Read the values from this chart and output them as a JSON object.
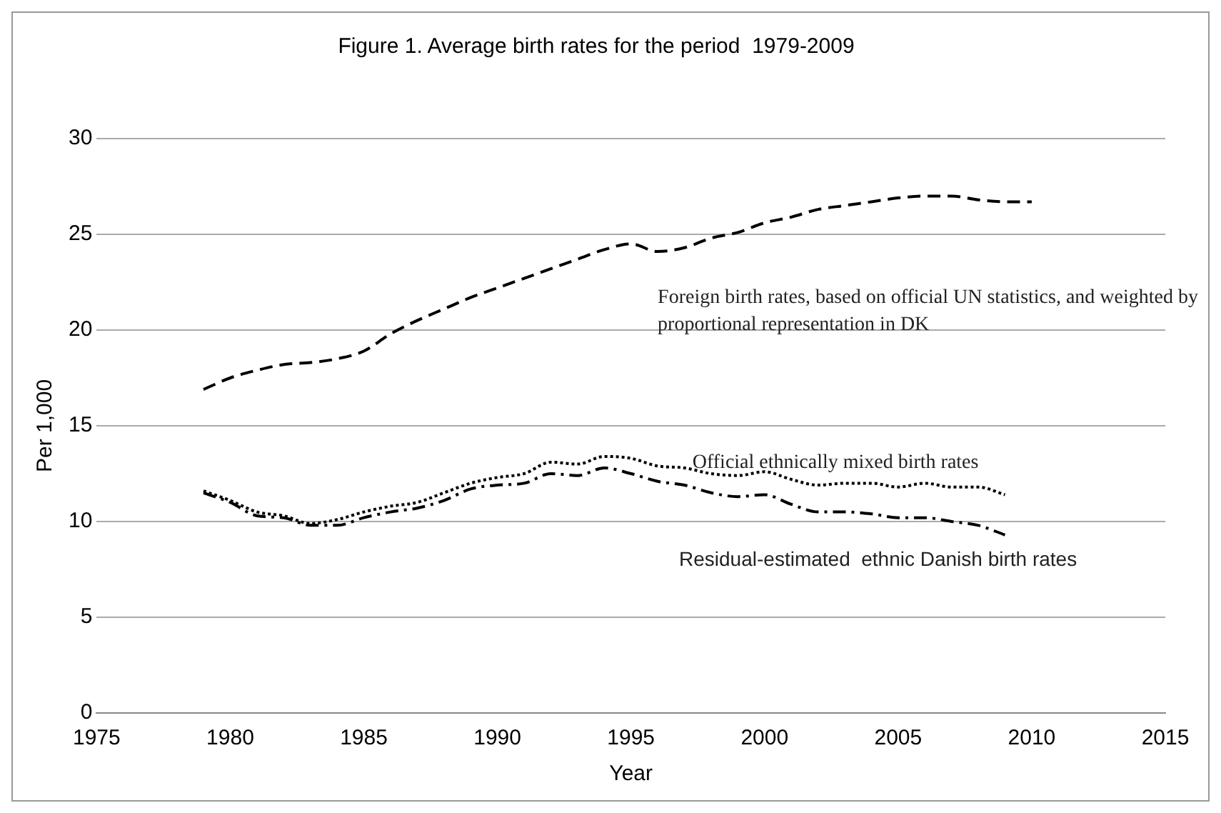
{
  "chart_data": {
    "type": "line",
    "title": "Figure 1. Average birth rates for the period  1979-2009",
    "xlabel": "Year",
    "ylabel": "Per 1,000",
    "xlim": [
      1975,
      2015
    ],
    "xticks": [
      1975,
      1980,
      1985,
      1990,
      1995,
      2000,
      2005,
      2010,
      2015
    ],
    "ylim": [
      0,
      30
    ],
    "yticks": [
      0,
      5,
      10,
      15,
      20,
      25,
      30
    ],
    "grid": "y",
    "legend": false,
    "marker": "none",
    "x": [
      1979,
      1980,
      1981,
      1982,
      1983,
      1984,
      1985,
      1986,
      1987,
      1988,
      1989,
      1990,
      1991,
      1992,
      1993,
      1994,
      1995,
      1996,
      1997,
      1998,
      1999,
      2000,
      2001,
      2002,
      2003,
      2004,
      2005,
      2006,
      2007,
      2008,
      2009,
      2010
    ],
    "series": [
      {
        "name": "Foreign birth rates, based on official UN statistics, and weighted by proportional representation in DK",
        "color": "#000000",
        "line_style": "dashed",
        "values": [
          16.9,
          17.5,
          17.9,
          18.2,
          18.3,
          18.5,
          18.9,
          19.8,
          20.5,
          21.1,
          21.7,
          22.2,
          22.7,
          23.2,
          23.7,
          24.2,
          24.5,
          24.1,
          24.3,
          24.8,
          25.1,
          25.6,
          25.9,
          26.3,
          26.5,
          26.7,
          26.9,
          27.0,
          27.0,
          26.8,
          26.7,
          26.7
        ]
      },
      {
        "name": "Official ethnically mixed birth rates",
        "color": "#000000",
        "line_style": "dotted",
        "values": [
          11.6,
          11.1,
          10.5,
          10.3,
          9.9,
          10.1,
          10.5,
          10.8,
          11.0,
          11.5,
          12.0,
          12.3,
          12.5,
          13.1,
          13.0,
          13.4,
          13.3,
          12.9,
          12.8,
          12.5,
          12.4,
          12.6,
          12.2,
          11.9,
          12.0,
          12.0,
          11.8,
          12.0,
          11.8,
          11.8,
          11.4,
          null
        ]
      },
      {
        "name": "Residual-estimated  ethnic Danish birth rates",
        "color": "#000000",
        "line_style": "dashdot",
        "values": [
          11.5,
          11.0,
          10.3,
          10.2,
          9.8,
          9.8,
          10.2,
          10.5,
          10.7,
          11.1,
          11.7,
          11.9,
          12.0,
          12.5,
          12.4,
          12.8,
          12.5,
          12.1,
          11.9,
          11.5,
          11.3,
          11.4,
          10.9,
          10.5,
          10.5,
          10.4,
          10.2,
          10.2,
          10.0,
          9.8,
          9.3,
          null
        ]
      }
    ]
  }
}
